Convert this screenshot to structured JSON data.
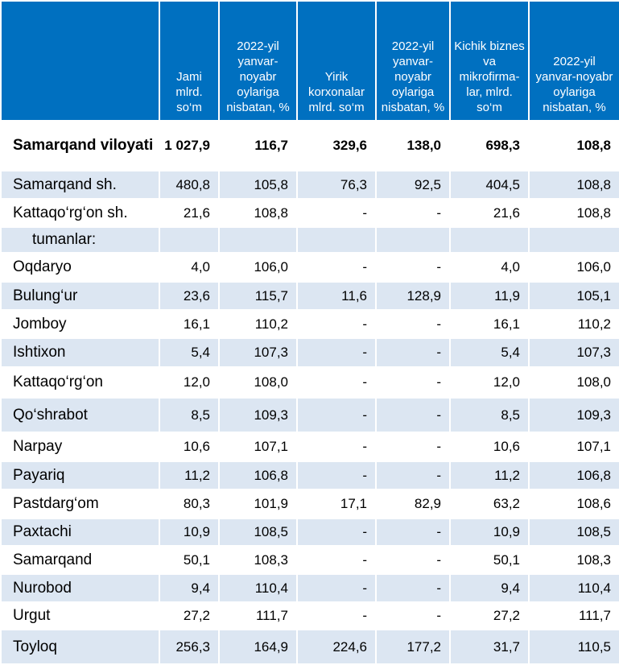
{
  "headers": [
    "",
    "Jami mlrd. so‘m",
    "2022-yil yanvar-noyabr oylariga nisbatan, %",
    "Yirik korxonalar mlrd. so‘m",
    "2022-yil yanvar-noyabr oylariga nisbatan, %",
    "Kichik biznes va mikrofirma-lar, mlrd. so‘m",
    "2022-yil yanvar-noyabr oylariga nisbatan, %"
  ],
  "rows": [
    {
      "cells": [
        "Samarqand viloyati",
        "1 027,9",
        "116,7",
        "329,6",
        "138,0",
        "698,3",
        "108,8"
      ]
    },
    {
      "cells": [
        "Samarqand sh.",
        "480,8",
        "105,8",
        "76,3",
        "92,5",
        "404,5",
        "108,8"
      ]
    },
    {
      "cells": [
        "Kattaqo‘rg‘on sh.",
        "21,6",
        "108,8",
        "-",
        "-",
        "21,6",
        "108,8"
      ]
    },
    {
      "cells": [
        "tumanlar:",
        "",
        "",
        "",
        "",
        "",
        ""
      ]
    },
    {
      "cells": [
        "Oqdaryo",
        "4,0",
        "106,0",
        "-",
        "-",
        "4,0",
        "106,0"
      ]
    },
    {
      "cells": [
        "Bulung‘ur",
        "23,6",
        "115,7",
        "11,6",
        "128,9",
        "11,9",
        "105,1"
      ]
    },
    {
      "cells": [
        "Jomboy",
        "16,1",
        "110,2",
        "-",
        "-",
        "16,1",
        "110,2"
      ]
    },
    {
      "cells": [
        "Ishtixon",
        "5,4",
        "107,3",
        "-",
        "-",
        "5,4",
        "107,3"
      ]
    },
    {
      "cells": [
        "Kattaqo‘rg‘on",
        "12,0",
        "108,0",
        "-",
        "-",
        "12,0",
        "108,0"
      ]
    },
    {
      "cells": [
        "Qo‘shrabot",
        "8,5",
        "109,3",
        "-",
        "-",
        "8,5",
        "109,3"
      ]
    },
    {
      "cells": [
        "Narpay",
        "10,6",
        "107,1",
        "-",
        "-",
        "10,6",
        "107,1"
      ]
    },
    {
      "cells": [
        "Payariq",
        "11,2",
        "106,8",
        "-",
        "-",
        "11,2",
        "106,8"
      ]
    },
    {
      "cells": [
        "Pastdarg‘om",
        "80,3",
        "101,9",
        "17,1",
        "82,9",
        "63,2",
        "108,6"
      ]
    },
    {
      "cells": [
        "Paxtachi",
        "10,9",
        "108,5",
        "-",
        "-",
        "10,9",
        "108,5"
      ]
    },
    {
      "cells": [
        "Samarqand",
        "50,1",
        "108,3",
        "-",
        "-",
        "50,1",
        "108,3"
      ]
    },
    {
      "cells": [
        "Nurobod",
        "9,4",
        "110,4",
        "-",
        "-",
        "9,4",
        "110,4"
      ]
    },
    {
      "cells": [
        "Urgut",
        "27,2",
        "111,7",
        "-",
        "-",
        "27,2",
        "111,7"
      ]
    },
    {
      "cells": [
        "Toyloq",
        "256,3",
        "164,9",
        "224,6",
        "177,2",
        "31,7",
        "110,5"
      ]
    }
  ],
  "colors": {
    "header": "#0070c0",
    "header_text": "#ffffff",
    "band": "#dce6f2"
  }
}
